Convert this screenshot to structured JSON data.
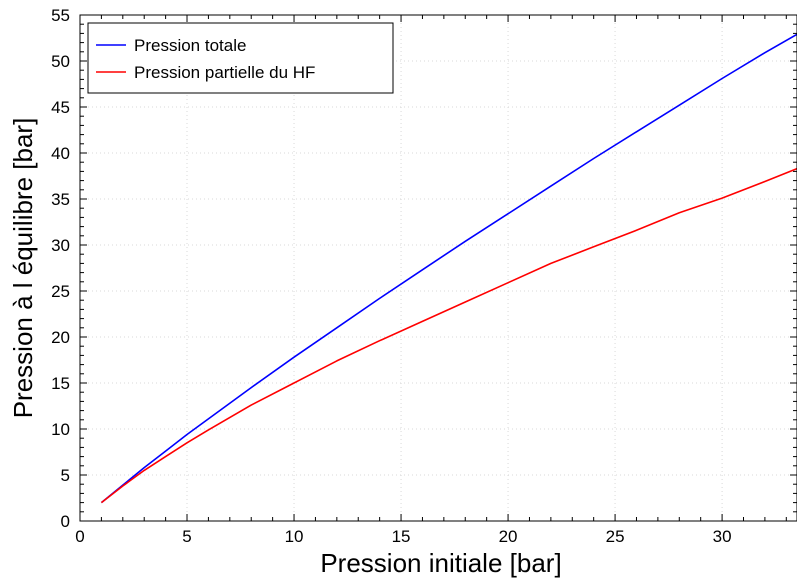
{
  "chart_data": {
    "type": "line",
    "title": "",
    "xlabel": "Pression initiale [bar]",
    "ylabel": "Pression à l équilibre [bar]",
    "xlim": [
      0,
      33.5
    ],
    "ylim": [
      0,
      55
    ],
    "x_ticks": [
      0,
      5,
      10,
      15,
      20,
      25,
      30
    ],
    "y_ticks": [
      0,
      5,
      10,
      15,
      20,
      25,
      30,
      35,
      40,
      45,
      50,
      55
    ],
    "grid": true,
    "legend_position": "top-left",
    "series": [
      {
        "name": "Pression totale",
        "color": "#0000ff",
        "x": [
          1,
          2,
          3,
          4,
          5,
          6,
          8,
          10,
          12,
          14,
          16,
          18,
          20,
          22,
          24,
          26,
          28,
          30,
          32,
          33.5
        ],
        "y": [
          2.0,
          3.9,
          5.8,
          7.6,
          9.4,
          11.1,
          14.5,
          17.8,
          21.0,
          24.2,
          27.3,
          30.4,
          33.4,
          36.4,
          39.4,
          42.3,
          45.2,
          48.1,
          50.9,
          52.9
        ]
      },
      {
        "name": "Pression partielle du HF",
        "color": "#ff0000",
        "x": [
          1,
          2,
          3,
          4,
          5,
          6,
          8,
          10,
          12,
          14,
          16,
          18,
          20,
          22,
          24,
          26,
          28,
          30,
          32,
          33.5
        ],
        "y": [
          2.0,
          3.8,
          5.5,
          7.0,
          8.5,
          9.9,
          12.6,
          15.0,
          17.4,
          19.6,
          21.7,
          23.8,
          25.9,
          28.0,
          29.8,
          31.6,
          33.5,
          35.1,
          36.9,
          38.3
        ]
      }
    ]
  }
}
